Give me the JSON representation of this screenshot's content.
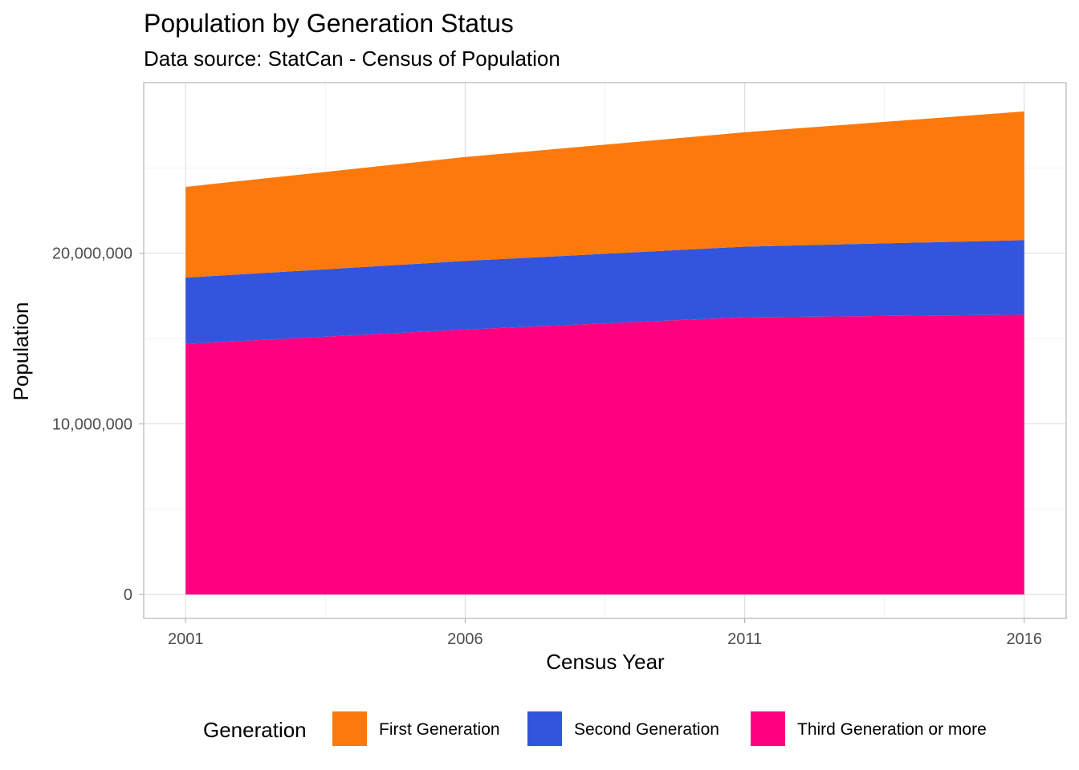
{
  "chart_data": {
    "type": "area",
    "stacked": true,
    "title": "Population by Generation Status",
    "subtitle": "Data source: StatCan - Census of Population",
    "xlabel": "Census Year",
    "ylabel": "Population",
    "x": [
      2001,
      2006,
      2011,
      2016
    ],
    "x_ticks": [
      "2001",
      "2006",
      "2011",
      "2016"
    ],
    "y_ticks": [
      {
        "value": 0,
        "label": "0"
      },
      {
        "value": 10000000,
        "label": "10,000,000"
      },
      {
        "value": 20000000,
        "label": "20,000,000"
      }
    ],
    "xlim": [
      2000.25,
      2016.75
    ],
    "ylim": [
      -1400000,
      30000000
    ],
    "grid": true,
    "legend": {
      "title": "Generation",
      "position": "bottom"
    },
    "series": [
      {
        "name": "Third Generation or more",
        "color": "#ff0080",
        "values": [
          14690000,
          15530000,
          16250000,
          16400000
        ]
      },
      {
        "name": "Second Generation",
        "color": "#3354dc",
        "values": [
          3880000,
          4020000,
          4140000,
          4370000
        ]
      },
      {
        "name": "First Generation",
        "color": "#fd790b",
        "values": [
          5320000,
          6090000,
          6700000,
          7540000
        ]
      }
    ],
    "legend_order": [
      "First Generation",
      "Second Generation",
      "Third Generation or more"
    ]
  }
}
